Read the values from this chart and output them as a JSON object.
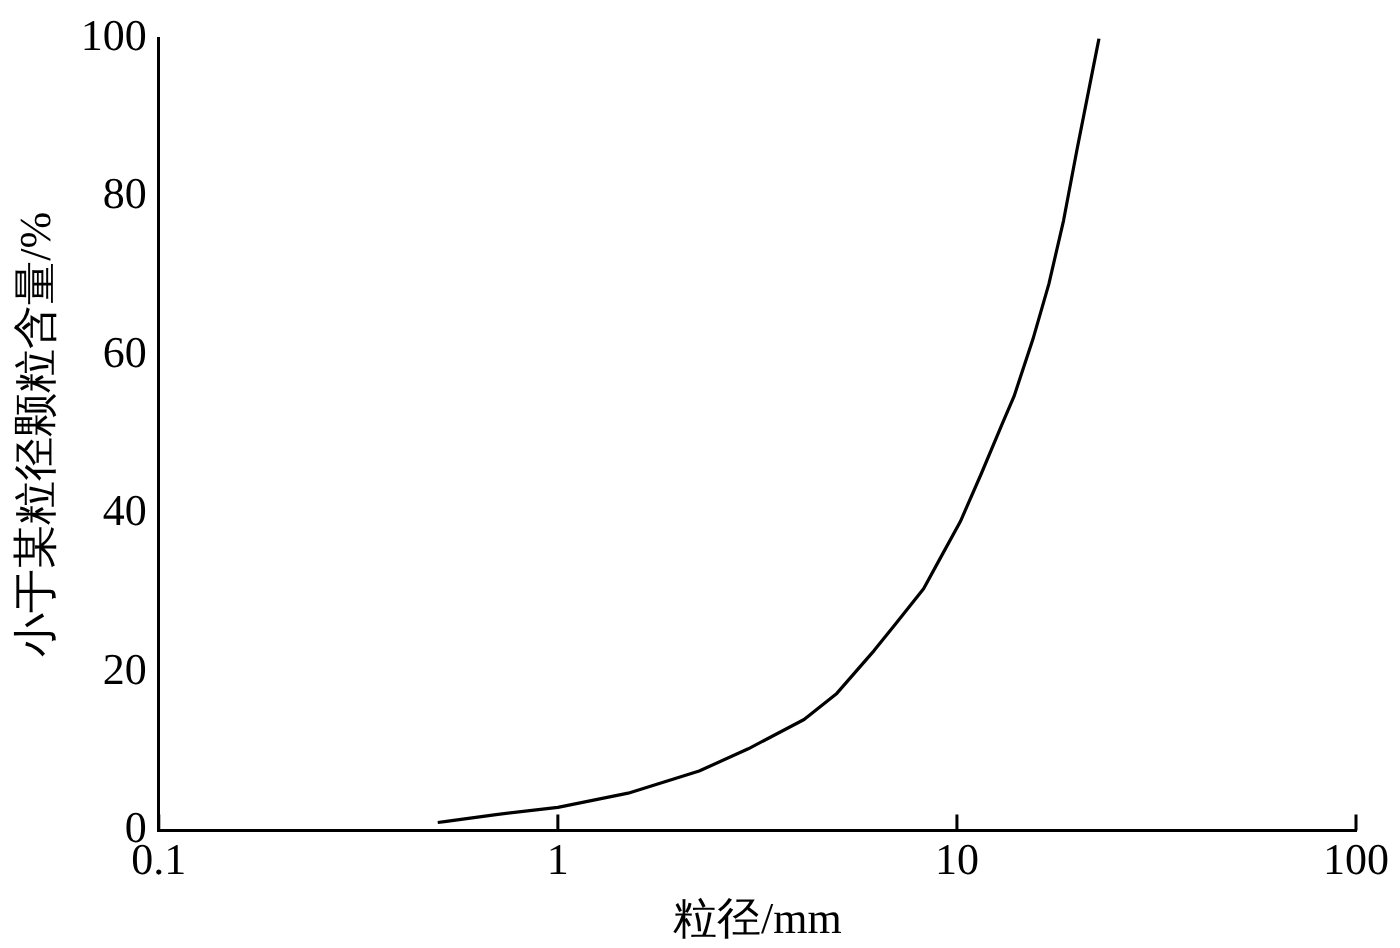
{
  "chart_data": {
    "type": "line",
    "xlabel": "粒径/mm",
    "ylabel": "小于某粒径颗粒含量/%",
    "log": "x",
    "xlim": [
      0.1,
      100
    ],
    "xticks": [
      0.1,
      1,
      10,
      100
    ],
    "ylim": [
      0,
      100
    ],
    "yticks": [
      0,
      20,
      40,
      60,
      80,
      100
    ],
    "grid": false,
    "legend": false,
    "marker": "none",
    "line_style": "solid",
    "series": [
      {
        "color": "#000000",
        "x": [
          0.5,
          0.52,
          0.7,
          1.0,
          1.5,
          2.26,
          3,
          4.14,
          5,
          6.2,
          7,
          8.25,
          9,
          10.2,
          11.5,
          13,
          13.9,
          15.5,
          17,
          18.5,
          20,
          21.5,
          22.7
        ],
        "values": [
          1.0,
          1.1,
          2.0,
          2.9,
          4.7,
          7.5,
          10.3,
          14,
          17.3,
          22.7,
          26,
          30.5,
          34,
          39,
          45,
          51.4,
          54.8,
          62,
          69,
          77,
          86,
          94,
          100
        ]
      }
    ]
  }
}
